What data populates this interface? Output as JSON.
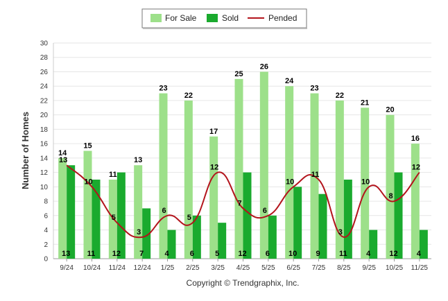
{
  "chart_data": {
    "type": "bar",
    "categories": [
      "9/24",
      "10/24",
      "11/24",
      "12/24",
      "1/25",
      "2/25",
      "3/25",
      "4/25",
      "5/25",
      "6/25",
      "7/25",
      "8/25",
      "9/25",
      "10/25",
      "11/25"
    ],
    "series": [
      {
        "name": "For Sale",
        "type": "bar",
        "color": "#9de08a",
        "values": [
          14,
          15,
          11,
          13,
          23,
          22,
          17,
          25,
          26,
          24,
          23,
          22,
          21,
          20,
          16
        ]
      },
      {
        "name": "Sold",
        "type": "bar",
        "color": "#1aaa2e",
        "values": [
          13,
          11,
          12,
          7,
          4,
          6,
          5,
          12,
          6,
          10,
          9,
          11,
          4,
          12,
          4
        ]
      },
      {
        "name": "Pended",
        "type": "line",
        "color": "#b3141c",
        "values": [
          13,
          10,
          5,
          3,
          6,
          5,
          12,
          7,
          6,
          10,
          11,
          3,
          10,
          8,
          12
        ]
      }
    ],
    "ylabel": "Number of Homes",
    "xlabel": "",
    "ylim": [
      0,
      30
    ],
    "yticks": [
      0,
      2,
      4,
      6,
      8,
      10,
      12,
      14,
      16,
      18,
      20,
      22,
      24,
      26,
      28,
      30
    ],
    "grid": true,
    "legend_position": "top-center"
  },
  "footer": {
    "copyright": "Copyright © Trendgraphix, Inc."
  }
}
